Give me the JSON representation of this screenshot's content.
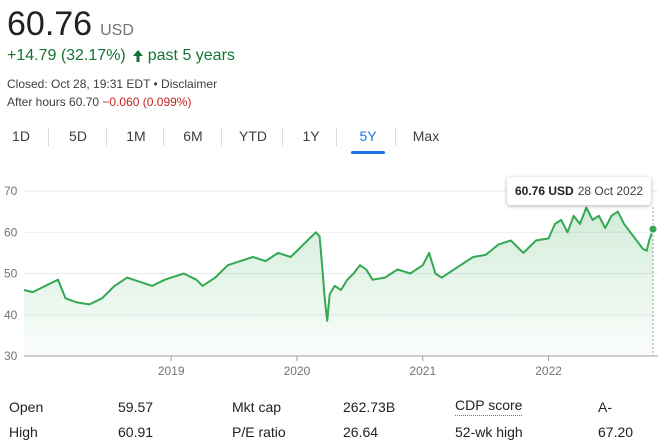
{
  "quote": {
    "price": "60.76",
    "currency": "USD",
    "change": "+14.79 (32.17%)",
    "arrow_icon": "arrow-up-icon",
    "change_period": "past 5 years",
    "closed_line": "Closed: Oct 28, 19:31 EDT • Disclaimer",
    "after_hours_label": "After hours 60.70",
    "after_hours_change": "−0.060 (0.099%)"
  },
  "ranges": {
    "items": [
      "1D",
      "5D",
      "1M",
      "6M",
      "YTD",
      "1Y",
      "5Y",
      "Max"
    ],
    "selected": "5Y"
  },
  "tooltip": {
    "value": "60.76 USD",
    "date": "28 Oct 2022"
  },
  "colors": {
    "line": "#34a853",
    "positive": "#137333",
    "negative": "#c5221f",
    "accent": "#1a73e8"
  },
  "chart_data": {
    "type": "area",
    "x_unit": "year (decimal)",
    "y_ticks": [
      30,
      40,
      50,
      60,
      70
    ],
    "x_tick_labels": [
      {
        "label": "2019",
        "x": 2019.0
      },
      {
        "label": "2020",
        "x": 2020.0
      },
      {
        "label": "2021",
        "x": 2021.0
      },
      {
        "label": "2022",
        "x": 2022.0
      }
    ],
    "xlim": [
      2017.83,
      2022.83
    ],
    "ylim": [
      30,
      70
    ],
    "grid": true,
    "series": [
      {
        "x": [
          2017.83,
          2017.9,
          2018.0,
          2018.1,
          2018.16,
          2018.25,
          2018.35,
          2018.45,
          2018.55,
          2018.65,
          2018.75,
          2018.85,
          2018.95,
          2019.0,
          2019.1,
          2019.2,
          2019.25,
          2019.35,
          2019.45,
          2019.55,
          2019.65,
          2019.75,
          2019.85,
          2019.95,
          2020.05,
          2020.1,
          2020.15,
          2020.18,
          2020.2,
          2020.22,
          2020.24,
          2020.26,
          2020.3,
          2020.35,
          2020.4,
          2020.45,
          2020.5,
          2020.55,
          2020.6,
          2020.7,
          2020.8,
          2020.9,
          2021.0,
          2021.05,
          2021.1,
          2021.15,
          2021.2,
          2021.3,
          2021.4,
          2021.5,
          2021.6,
          2021.7,
          2021.8,
          2021.9,
          2022.0,
          2022.05,
          2022.1,
          2022.15,
          2022.2,
          2022.25,
          2022.3,
          2022.35,
          2022.4,
          2022.45,
          2022.5,
          2022.55,
          2022.6,
          2022.65,
          2022.7,
          2022.75,
          2022.78,
          2022.8,
          2022.83
        ],
        "y": [
          46,
          45.5,
          47,
          48.5,
          44,
          43,
          42.5,
          44,
          47,
          49,
          48,
          47,
          48.5,
          49,
          50,
          48.5,
          47,
          49,
          52,
          53,
          54,
          53,
          55,
          54,
          57,
          58.5,
          60,
          59,
          52,
          44,
          38.5,
          45,
          47,
          46,
          48.5,
          50,
          52,
          51,
          48.5,
          49,
          51,
          50,
          52,
          55,
          50,
          49,
          50,
          52,
          54,
          54.5,
          57,
          58,
          55,
          58,
          58.5,
          62,
          63,
          60,
          64,
          62,
          66,
          63,
          64,
          61,
          64,
          65,
          62,
          60,
          58,
          56,
          55.5,
          58,
          60.76
        ]
      }
    ]
  },
  "stats": {
    "rows": [
      [
        {
          "label": "Open",
          "value": "59.57"
        },
        {
          "label": "Mkt cap",
          "value": "262.73B"
        },
        {
          "label": "CDP score",
          "value": "A-"
        }
      ],
      [
        {
          "label": "High",
          "value": "60.91"
        },
        {
          "label": "P/E ratio",
          "value": "26.64"
        },
        {
          "label": "52-wk high",
          "value": "67.20"
        }
      ]
    ]
  }
}
